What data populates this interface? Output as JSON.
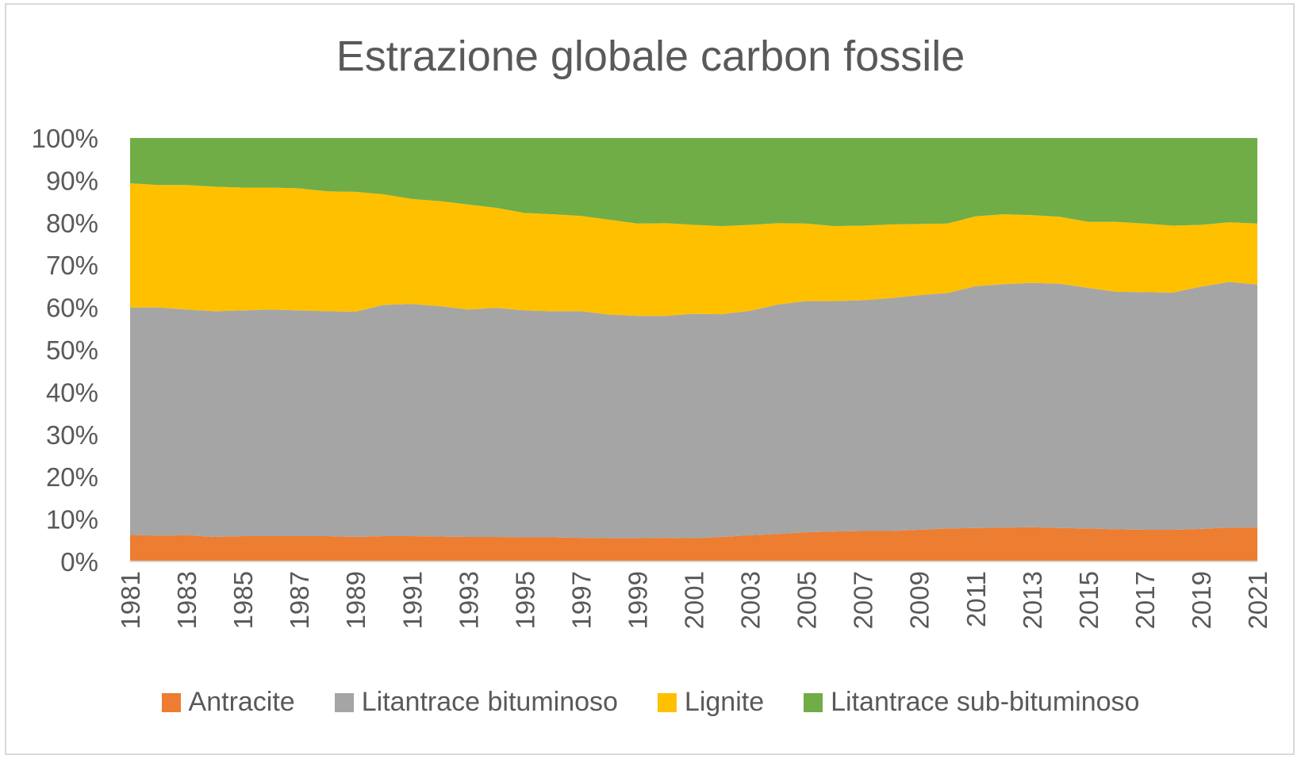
{
  "chart_data": {
    "type": "area",
    "stacked": "percent",
    "title": "Estrazione globale carbon fossile",
    "xlabel": "",
    "ylabel": "",
    "ylim": [
      0,
      100
    ],
    "yticks": [
      "0%",
      "10%",
      "20%",
      "30%",
      "40%",
      "50%",
      "60%",
      "70%",
      "80%",
      "90%",
      "100%"
    ],
    "x": [
      1981,
      1982,
      1983,
      1984,
      1985,
      1986,
      1987,
      1988,
      1989,
      1990,
      1991,
      1992,
      1993,
      1994,
      1995,
      1996,
      1997,
      1998,
      1999,
      2000,
      2001,
      2002,
      2003,
      2004,
      2005,
      2006,
      2007,
      2008,
      2009,
      2010,
      2011,
      2012,
      2013,
      2014,
      2015,
      2016,
      2017,
      2018,
      2019,
      2020,
      2021
    ],
    "xtick_labels": [
      "1981",
      "1983",
      "1985",
      "1987",
      "1989",
      "1991",
      "1993",
      "1995",
      "1997",
      "1999",
      "2001",
      "2003",
      "2005",
      "2007",
      "2009",
      "2011",
      "2013",
      "2015",
      "2017",
      "2019",
      "2021"
    ],
    "legend_position": "bottom",
    "grid": false,
    "series": [
      {
        "name": "Antracite",
        "color": "#ed7d31",
        "values": [
          6.3,
          6.1,
          6.2,
          5.8,
          6.0,
          6.0,
          6.0,
          6.0,
          5.8,
          6.0,
          6.0,
          5.9,
          5.8,
          5.8,
          5.7,
          5.7,
          5.6,
          5.5,
          5.5,
          5.6,
          5.5,
          5.8,
          6.2,
          6.5,
          6.9,
          7.1,
          7.2,
          7.2,
          7.5,
          7.8,
          7.9,
          8.0,
          8.1,
          7.9,
          7.8,
          7.6,
          7.5,
          7.5,
          7.7,
          8.0,
          8.0
        ]
      },
      {
        "name": "Litantrace bituminoso",
        "color": "#a5a5a5",
        "values": [
          53.7,
          53.9,
          53.3,
          53.3,
          53.3,
          53.5,
          53.3,
          53.1,
          53.2,
          54.6,
          54.8,
          54.4,
          53.7,
          54.1,
          53.6,
          53.4,
          53.5,
          52.8,
          52.5,
          52.4,
          53.0,
          52.6,
          53.0,
          54.2,
          54.6,
          54.4,
          54.5,
          55.0,
          55.4,
          55.6,
          57.1,
          57.5,
          57.7,
          57.7,
          56.8,
          56.1,
          56.1,
          56.0,
          57.2,
          58.0,
          57.4
        ]
      },
      {
        "name": "Lignite",
        "color": "#ffc000",
        "values": [
          29.3,
          28.9,
          29.4,
          29.4,
          29.0,
          28.8,
          28.8,
          28.3,
          28.3,
          26.1,
          24.8,
          24.8,
          24.8,
          23.6,
          23.0,
          22.9,
          22.5,
          22.4,
          21.8,
          21.9,
          21.0,
          20.8,
          20.3,
          19.2,
          18.3,
          17.7,
          17.6,
          17.4,
          16.8,
          16.4,
          16.5,
          16.5,
          16.0,
          15.8,
          15.6,
          16.5,
          16.2,
          15.8,
          14.6,
          14.1,
          14.4
        ]
      },
      {
        "name": "Litantrace sub-bituminoso",
        "color": "#70ad47",
        "values": [
          10.7,
          11.1,
          11.1,
          11.5,
          11.7,
          11.7,
          11.9,
          12.6,
          12.7,
          13.3,
          14.4,
          14.9,
          15.7,
          16.5,
          17.7,
          18.0,
          18.4,
          19.3,
          20.2,
          20.1,
          20.5,
          20.8,
          20.5,
          20.1,
          20.2,
          20.8,
          20.7,
          20.4,
          20.3,
          20.2,
          18.5,
          18.0,
          18.2,
          18.6,
          19.8,
          19.8,
          20.2,
          20.7,
          20.5,
          19.9,
          20.2
        ]
      }
    ]
  }
}
